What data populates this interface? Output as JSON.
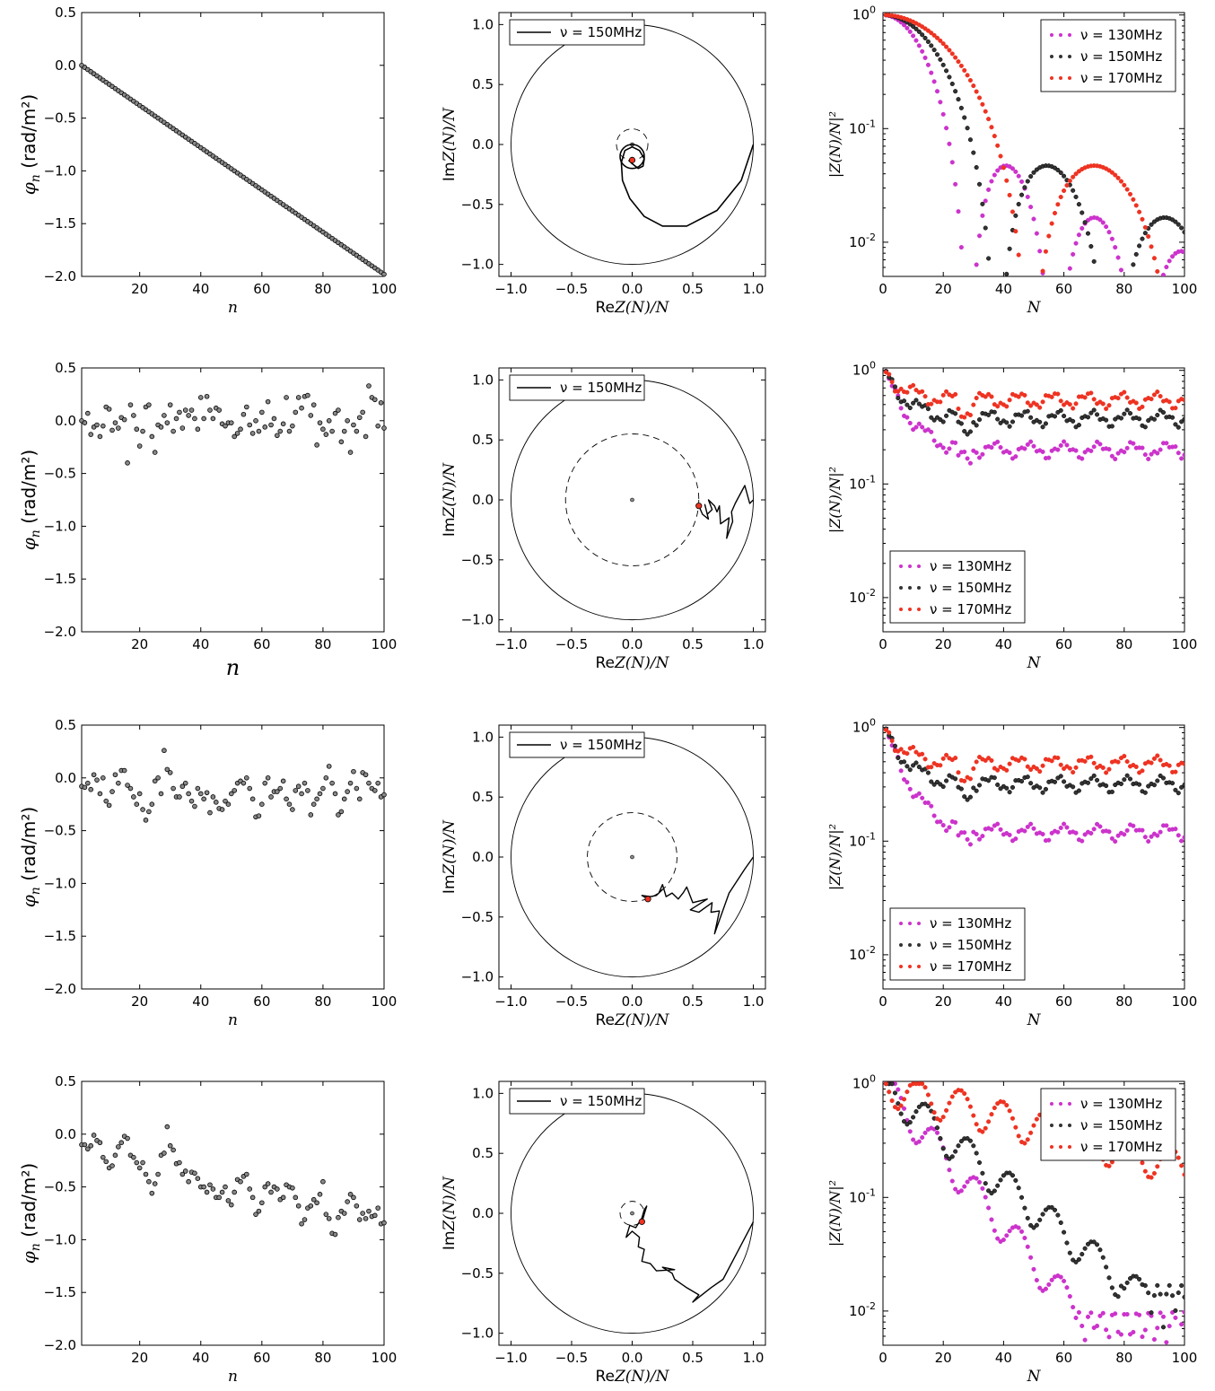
{
  "panels": {
    "phase": [
      {
        "series_id": "r1",
        "xlabel": "n",
        "ylabel": "φ_n",
        "ylabel_unit": "(rad/m²)"
      },
      {
        "series_id": "r2",
        "xlabel": "n",
        "ylabel": "φ_n",
        "ylabel_unit": "(rad/m²)"
      },
      {
        "series_id": "r3",
        "xlabel": "n",
        "ylabel": "φ_n",
        "ylabel_unit": "(rad/m²)"
      },
      {
        "series_id": "r4",
        "xlabel": "n",
        "ylabel": "φ_n",
        "ylabel_unit": "(rad/m²)"
      }
    ],
    "complex": [
      {
        "xlabel": "ReZ(N)/N",
        "ylabel": "ImZ(N)/N",
        "legend": "ν = 150MHz",
        "dashed_radius": 0.13,
        "end_point": [
          0.0,
          -0.13
        ],
        "path_id": "p1"
      },
      {
        "xlabel": "ReZ(N)/N",
        "ylabel": "ImZ(N)/N",
        "legend": "ν = 150MHz",
        "dashed_radius": 0.55,
        "end_point": [
          0.55,
          -0.05
        ],
        "path_id": "p2"
      },
      {
        "xlabel": "ReZ(N)/N",
        "ylabel": "ImZ(N)/N",
        "legend": "ν = 150MHz",
        "dashed_radius": 0.37,
        "end_point": [
          0.13,
          -0.35
        ],
        "path_id": "p3"
      },
      {
        "xlabel": "ReZ(N)/N",
        "ylabel": "ImZ(N)/N",
        "legend": "ν = 150MHz",
        "dashed_radius": 0.1,
        "end_point": [
          0.08,
          -0.07
        ],
        "path_id": "p4"
      }
    ],
    "magnitude": [
      {
        "xlabel": "N",
        "ylabel": "|Z(N)/N|²",
        "legend_position": "top-right",
        "legend": [
          "ν = 130MHz",
          "ν = 150MHz",
          "ν = 170MHz"
        ]
      },
      {
        "xlabel": "N",
        "ylabel": "|Z(N)/N|²",
        "legend_position": "lower-left",
        "legend": [
          "ν = 130MHz",
          "ν = 150MHz",
          "ν = 170MHz"
        ]
      },
      {
        "xlabel": "N",
        "ylabel": "|Z(N)/N|²",
        "legend_position": "lower-left",
        "legend": [
          "ν = 130MHz",
          "ν = 150MHz",
          "ν = 170MHz"
        ]
      },
      {
        "xlabel": "N",
        "ylabel": "|Z(N)/N|²",
        "legend_position": "top-right",
        "legend": [
          "ν = 130MHz",
          "ν = 150MHz",
          "ν = 170MHz"
        ]
      }
    ]
  },
  "chart_data": [
    {
      "type": "scatter",
      "panel": "row1-phase",
      "xlabel": "n",
      "ylabel": "φn (rad/m²)",
      "xlim": [
        1,
        100
      ],
      "ylim": [
        -2.0,
        0.5
      ],
      "xticks": [
        20,
        40,
        60,
        80,
        100
      ],
      "yticks": [
        0.5,
        0.0,
        -0.5,
        -1.0,
        -1.5,
        -2.0
      ],
      "description": "linear trend: φn from 0.0 at n=1 to -1.98 at n=100",
      "series": [
        {
          "x_start": 1,
          "x_end": 100,
          "y_start": 0.0,
          "y_end": -1.98
        }
      ]
    },
    {
      "type": "line",
      "panel": "row1-complex",
      "xlim": [
        -1.1,
        1.1
      ],
      "ylim": [
        -1.1,
        1.1
      ],
      "xticks": [
        -1.0,
        -0.5,
        0.0,
        0.5,
        1.0
      ],
      "yticks": [
        1.0,
        0.5,
        0.0,
        -0.5,
        -1.0
      ],
      "series": [
        {
          "name": "ν = 150MHz",
          "x": [
            1.0,
            0.9,
            0.7,
            0.45,
            0.25,
            0.1,
            -0.02,
            -0.08,
            -0.09,
            -0.06,
            0.0,
            0.06,
            0.1,
            0.09,
            0.05,
            0.0,
            -0.03
          ],
          "y": [
            0.0,
            -0.3,
            -0.55,
            -0.68,
            -0.68,
            -0.6,
            -0.45,
            -0.3,
            -0.15,
            -0.05,
            -0.02,
            -0.05,
            -0.12,
            -0.18,
            -0.2,
            -0.16,
            -0.13
          ]
        }
      ]
    },
    {
      "type": "scatter",
      "panel": "row1-magnitude",
      "xlim": [
        0,
        100
      ],
      "ylim": [
        0.005,
        1.05
      ],
      "yscale": "log",
      "xticks": [
        0,
        20,
        40,
        60,
        80,
        100
      ],
      "yticks_labels": [
        "10^0",
        "10^-1",
        "10^-2"
      ],
      "series": [
        {
          "name": "ν = 130MHz",
          "color": "#cc33cc",
          "model": "sinc",
          "zero": 28.5,
          "scale": 1.0
        },
        {
          "name": "ν = 150MHz",
          "color": "#333333",
          "model": "sinc",
          "zero": 38.0,
          "scale": 1.0
        },
        {
          "name": "ν = 170MHz",
          "color": "#ee3322",
          "model": "sinc",
          "zero": 49.0,
          "scale": 1.0
        }
      ]
    },
    {
      "type": "scatter",
      "panel": "row2-phase",
      "xlabel": "n",
      "ylabel": "φn (rad/m²)",
      "xlim": [
        1,
        100
      ],
      "ylim": [
        -2.0,
        0.5
      ],
      "xticks": [
        20,
        40,
        60,
        80,
        100
      ],
      "yticks": [
        0.5,
        0.0,
        -0.5,
        -1.0,
        -1.5,
        -2.0
      ],
      "series": [
        {
          "id": "r2",
          "y": [
            0.0,
            -0.02,
            0.07,
            -0.13,
            -0.06,
            -0.04,
            -0.15,
            -0.05,
            0.13,
            0.11,
            -0.09,
            -0.02,
            -0.07,
            0.03,
            0.01,
            -0.4,
            0.15,
            0.05,
            -0.08,
            -0.24,
            -0.1,
            0.13,
            0.15,
            -0.15,
            -0.3,
            -0.04,
            -0.06,
            0.05,
            -0.02,
            0.15,
            -0.1,
            0.02,
            0.08,
            -0.07,
            0.1,
            0.05,
            0.1,
            0.02,
            -0.08,
            0.22,
            0.02,
            0.23,
            0.1,
            0.02,
            0.12,
            0.1,
            -0.03,
            -0.05,
            -0.02,
            -0.02,
            -0.15,
            -0.12,
            -0.08,
            0.06,
            0.13,
            -0.04,
            -0.12,
            0.0,
            -0.1,
            0.08,
            -0.06,
            0.18,
            -0.04,
            0.02,
            -0.14,
            -0.1,
            -0.03,
            0.22,
            -0.1,
            -0.05,
            0.08,
            0.22,
            0.12,
            0.23,
            0.24,
            0.05,
            0.15,
            -0.23,
            -0.02,
            -0.08,
            -0.13,
            0.0,
            -0.1,
            0.07,
            0.1,
            -0.2,
            -0.1,
            0.0,
            -0.3,
            -0.04,
            -0.1,
            0.03,
            0.08,
            -0.15,
            0.33,
            0.22,
            0.2,
            -0.05,
            0.17,
            -0.07
          ]
        }
      ]
    },
    {
      "type": "line",
      "panel": "row2-complex",
      "xlim": [
        -1.1,
        1.1
      ],
      "ylim": [
        -1.1,
        1.1
      ],
      "series": [
        {
          "name": "ν = 150MHz",
          "x": [
            1.0,
            0.97,
            0.93,
            0.85,
            0.82,
            0.83,
            0.78,
            0.8,
            0.73,
            0.72,
            0.7,
            0.68,
            0.63,
            0.66,
            0.62,
            0.6,
            0.63,
            0.58,
            0.55
          ],
          "y": [
            0.0,
            -0.03,
            0.12,
            -0.03,
            -0.1,
            -0.18,
            -0.32,
            -0.15,
            -0.2,
            -0.05,
            -0.1,
            -0.05,
            0.0,
            -0.08,
            -0.12,
            -0.04,
            -0.16,
            -0.12,
            -0.05
          ]
        }
      ]
    },
    {
      "type": "scatter",
      "panel": "row2-magnitude",
      "xlim": [
        0,
        100
      ],
      "ylim": [
        0.005,
        1.05
      ],
      "yscale": "log",
      "series": [
        {
          "name": "ν = 130MHz",
          "color": "#cc33cc",
          "model": "walk",
          "plateau": 0.2
        },
        {
          "name": "ν = 150MHz",
          "color": "#333333",
          "model": "walk",
          "plateau": 0.38
        },
        {
          "name": "ν = 170MHz",
          "color": "#ee3322",
          "model": "walk",
          "plateau": 0.55
        }
      ]
    },
    {
      "type": "scatter",
      "panel": "row3-phase",
      "xlabel": "n",
      "ylabel": "φn (rad/m²)",
      "xlim": [
        1,
        100
      ],
      "ylim": [
        -2.0,
        0.5
      ],
      "series": [
        {
          "id": "r3",
          "y": [
            -0.08,
            -0.09,
            -0.05,
            -0.11,
            0.03,
            -0.02,
            -0.15,
            0.0,
            -0.22,
            -0.26,
            -0.13,
            0.03,
            -0.05,
            0.07,
            0.07,
            -0.07,
            -0.1,
            -0.18,
            -0.25,
            -0.15,
            -0.3,
            -0.4,
            -0.32,
            -0.25,
            -0.03,
            0.0,
            -0.15,
            0.26,
            0.08,
            0.05,
            -0.1,
            -0.18,
            -0.18,
            -0.08,
            -0.05,
            -0.15,
            -0.22,
            -0.27,
            -0.1,
            -0.15,
            -0.2,
            -0.14,
            -0.33,
            -0.18,
            -0.23,
            -0.29,
            -0.3,
            -0.22,
            -0.25,
            -0.15,
            -0.12,
            -0.05,
            -0.03,
            -0.05,
            0.0,
            -0.1,
            -0.2,
            -0.37,
            -0.36,
            -0.25,
            -0.05,
            0.0,
            -0.18,
            -0.13,
            -0.13,
            -0.1,
            -0.03,
            -0.2,
            -0.25,
            -0.3,
            -0.12,
            -0.08,
            -0.15,
            -0.05,
            -0.12,
            -0.35,
            -0.25,
            -0.2,
            -0.15,
            -0.1,
            0.0,
            0.11,
            -0.05,
            -0.15,
            -0.35,
            -0.32,
            -0.2,
            -0.13,
            -0.05,
            0.06,
            -0.1,
            -0.2,
            0.05,
            0.03,
            -0.05,
            -0.1,
            -0.12,
            -0.05,
            -0.18,
            -0.16
          ]
        }
      ]
    },
    {
      "type": "line",
      "panel": "row3-complex",
      "xlim": [
        -1.1,
        1.1
      ],
      "ylim": [
        -1.1,
        1.1
      ],
      "series": [
        {
          "name": "ν = 150MHz",
          "x": [
            1.0,
            0.93,
            0.8,
            0.68,
            0.72,
            0.65,
            0.66,
            0.55,
            0.48,
            0.62,
            0.5,
            0.45,
            0.42,
            0.38,
            0.33,
            0.28,
            0.25,
            0.22,
            0.25,
            0.2,
            0.15,
            0.08,
            0.13
          ],
          "y": [
            0.0,
            -0.1,
            -0.3,
            -0.64,
            -0.45,
            -0.46,
            -0.38,
            -0.46,
            -0.44,
            -0.35,
            -0.38,
            -0.25,
            -0.3,
            -0.35,
            -0.3,
            -0.33,
            -0.23,
            -0.3,
            -0.27,
            -0.32,
            -0.33,
            -0.32,
            -0.35
          ]
        }
      ]
    },
    {
      "type": "scatter",
      "panel": "row3-magnitude",
      "xlim": [
        0,
        100
      ],
      "ylim": [
        0.005,
        1.05
      ],
      "yscale": "log",
      "series": [
        {
          "name": "ν = 130MHz",
          "color": "#cc33cc",
          "model": "walk",
          "plateau": 0.12
        },
        {
          "name": "ν = 150MHz",
          "color": "#333333",
          "model": "walk",
          "plateau": 0.32
        },
        {
          "name": "ν = 170MHz",
          "color": "#ee3322",
          "model": "walk",
          "plateau": 0.48
        }
      ]
    },
    {
      "type": "scatter",
      "panel": "row4-phase",
      "xlabel": "n",
      "ylabel": "φn (rad/m²)",
      "xlim": [
        1,
        100
      ],
      "ylim": [
        -2.0,
        0.5
      ],
      "series": [
        {
          "id": "r4",
          "y": [
            -0.1,
            -0.1,
            -0.14,
            -0.11,
            -0.01,
            -0.06,
            -0.08,
            -0.22,
            -0.26,
            -0.32,
            -0.3,
            -0.2,
            -0.12,
            -0.08,
            -0.02,
            -0.04,
            -0.2,
            -0.22,
            -0.27,
            -0.32,
            -0.27,
            -0.38,
            -0.45,
            -0.56,
            -0.47,
            -0.38,
            -0.2,
            -0.18,
            0.07,
            -0.11,
            -0.15,
            -0.28,
            -0.27,
            -0.38,
            -0.35,
            -0.45,
            -0.36,
            -0.37,
            -0.42,
            -0.5,
            -0.5,
            -0.55,
            -0.48,
            -0.52,
            -0.6,
            -0.6,
            -0.55,
            -0.5,
            -0.63,
            -0.67,
            -0.55,
            -0.43,
            -0.45,
            -0.4,
            -0.38,
            -0.52,
            -0.6,
            -0.76,
            -0.73,
            -0.65,
            -0.5,
            -0.47,
            -0.55,
            -0.5,
            -0.52,
            -0.62,
            -0.6,
            -0.48,
            -0.5,
            -0.51,
            -0.6,
            -0.68,
            -0.85,
            -0.81,
            -0.7,
            -0.68,
            -0.62,
            -0.65,
            -0.57,
            -0.45,
            -0.76,
            -0.8,
            -0.94,
            -0.95,
            -0.79,
            -0.73,
            -0.75,
            -0.64,
            -0.57,
            -0.6,
            -0.68,
            -0.81,
            -0.75,
            -0.8,
            -0.73,
            -0.78,
            -0.77,
            -0.7,
            -0.85,
            -0.84
          ]
        }
      ]
    },
    {
      "type": "line",
      "panel": "row4-complex",
      "xlim": [
        -1.1,
        1.1
      ],
      "ylim": [
        -1.1,
        1.1
      ],
      "series": [
        {
          "name": "ν = 150MHz",
          "x": [
            1.0,
            0.75,
            0.65,
            0.5,
            0.55,
            0.45,
            0.35,
            0.33,
            0.25,
            0.35,
            0.2,
            0.15,
            0.08,
            0.1,
            0.05,
            0.06,
            0.0,
            -0.05,
            -0.02,
            0.03,
            0.08,
            0.1,
            0.12,
            0.08
          ],
          "y": [
            -0.07,
            -0.55,
            -0.62,
            -0.74,
            -0.68,
            -0.62,
            -0.55,
            -0.5,
            -0.45,
            -0.47,
            -0.48,
            -0.42,
            -0.4,
            -0.3,
            -0.28,
            -0.2,
            -0.15,
            -0.2,
            -0.1,
            -0.12,
            -0.04,
            0.03,
            0.06,
            -0.07
          ]
        }
      ]
    },
    {
      "type": "scatter",
      "panel": "row4-magnitude",
      "xlim": [
        0,
        100
      ],
      "ylim": [
        0.005,
        1.05
      ],
      "yscale": "log",
      "series": [
        {
          "name": "ν = 130MHz",
          "color": "#cc33cc",
          "model": "decay",
          "floor": 0.007
        },
        {
          "name": "ν = 150MHz",
          "color": "#333333",
          "model": "decay",
          "floor": 0.012
        },
        {
          "name": "ν = 170MHz",
          "color": "#ee3322",
          "model": "decay",
          "floor": 0.05
        }
      ]
    }
  ],
  "tick_labels": {
    "phase_x": [
      "20",
      "40",
      "60",
      "80",
      "100"
    ],
    "phase_y": [
      "0.5",
      "0.0",
      "−0.5",
      "−1.0",
      "−1.5",
      "−2.0"
    ],
    "complex_x": [
      "−1.0",
      "−0.5",
      "0.0",
      "0.5",
      "1.0"
    ],
    "complex_y": [
      "1.0",
      "0.5",
      "0.0",
      "−0.5",
      "−1.0"
    ],
    "mag_x": [
      "0",
      "20",
      "40",
      "60",
      "80",
      "100"
    ]
  },
  "colors": {
    "c130": "#cc33cc",
    "c150": "#333333",
    "c170": "#ee3322",
    "axis": "#000000"
  }
}
